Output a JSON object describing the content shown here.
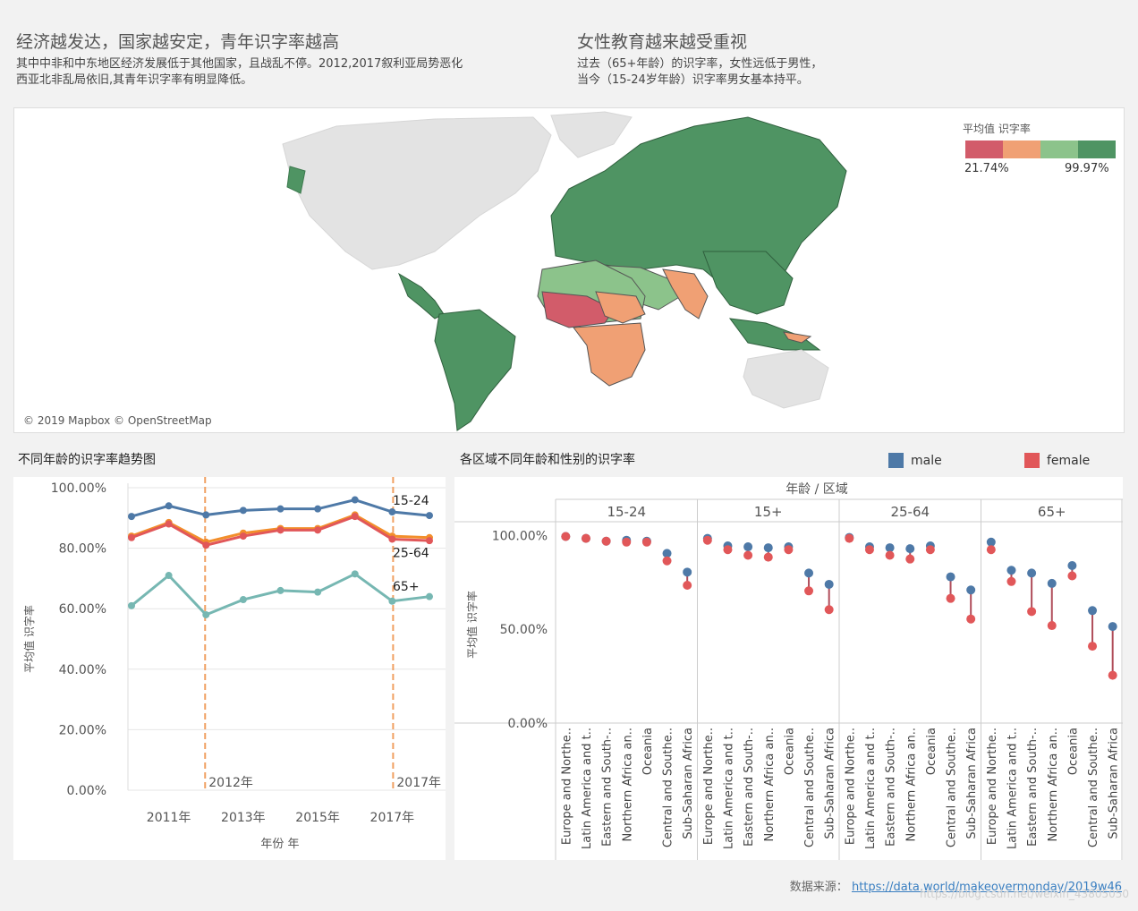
{
  "header_left": {
    "title": "经济越发达，国家越安定，青年识字率越高",
    "line1": "其中中非和中东地区经济发展低于其他国家，且战乱不停。2012,2017叙利亚局势恶化",
    "line2": "西亚北非乱局依旧,其青年识字率有明显降低。"
  },
  "header_right": {
    "title": "女性教育越来越受重视",
    "line1": "过去（65+年龄）的识字率，女性远低于男性，",
    "line2": "当今（15-24岁年龄）识字率男女基本持平。"
  },
  "map": {
    "credit": "© 2019 Mapbox © OpenStreetMap",
    "legend_title": "平均值 识字率",
    "legend_min": "21.74%",
    "legend_max": "99.97%",
    "legend_colors": [
      "#d25c6a",
      "#f0a074",
      "#8cc38b",
      "#4f9463"
    ]
  },
  "line_panel_title": "不同年龄的识字率趋势图",
  "dot_panel_title": "各区域不同年龄和性别的识字率",
  "legend_male": "male",
  "legend_female": "female",
  "colors": {
    "male": "#4e79a7",
    "female": "#e15759"
  },
  "source_label": "数据来源：",
  "source_url": "https://data.world/makeovermonday/2019w46",
  "watermark": "https://blog.csdn.net/weixin_43805050",
  "chart_data": [
    {
      "type": "line",
      "title": "不同年龄的识字率趋势图",
      "xlabel": "年份 年",
      "ylabel": "平均值 识字率",
      "x": [
        2010,
        2011,
        2012,
        2013,
        2014,
        2015,
        2016,
        2017,
        2018
      ],
      "x_ticks": [
        "2011年",
        "2013年",
        "2015年",
        "2017年"
      ],
      "x_tick_values": [
        2011,
        2013,
        2015,
        2017
      ],
      "ylim": [
        0,
        100
      ],
      "y_ticks": [
        "0.00%",
        "20.00%",
        "40.00%",
        "60.00%",
        "80.00%",
        "100.00%"
      ],
      "series": [
        {
          "name": "15-24",
          "color": "#4e79a7",
          "values": [
            90.5,
            94.0,
            91.0,
            92.5,
            93.0,
            93.0,
            96.0,
            92.0,
            90.8
          ]
        },
        {
          "name": "15+",
          "color": "#f28e2b",
          "values": [
            84.0,
            88.5,
            82.0,
            85.0,
            86.5,
            86.5,
            91.0,
            84.0,
            83.5
          ]
        },
        {
          "name": "25-64",
          "color": "#e15759",
          "values": [
            83.5,
            88.0,
            81.0,
            84.0,
            86.0,
            86.0,
            90.5,
            83.0,
            82.5
          ]
        },
        {
          "name": "65+",
          "color": "#76b7b2",
          "values": [
            61.0,
            71.0,
            58.0,
            63.0,
            66.0,
            65.5,
            71.5,
            62.5,
            64.0
          ]
        }
      ],
      "end_labels": [
        "15-24",
        "25-64",
        "65+"
      ],
      "annotations": [
        {
          "x": 2012,
          "label": "2012年"
        },
        {
          "x": 2017,
          "label": "2017年"
        }
      ]
    },
    {
      "type": "scatter",
      "title": "各区域不同年龄和性别的识字率",
      "header": "年龄 / 区域",
      "ylabel": "平均值 识字率",
      "ylim": [
        0,
        105
      ],
      "y_ticks": [
        "0.00%",
        "50.00%",
        "100.00%"
      ],
      "regions": [
        "Europe and Northe..",
        "Latin America and t..",
        "Eastern and South-..",
        "Northern Africa an..",
        "Oceania",
        "Central and Southe..",
        "Sub-Saharan Africa"
      ],
      "groups": [
        {
          "age": "15-24",
          "male": [
            99.5,
            98.5,
            97.0,
            97.5,
            97.0,
            90.5,
            80.5
          ],
          "female": [
            99.5,
            98.5,
            97.0,
            96.5,
            96.5,
            86.5,
            73.5
          ]
        },
        {
          "age": "15+",
          "male": [
            98.5,
            94.5,
            94.0,
            93.5,
            94.0,
            80.0,
            74.0
          ],
          "female": [
            97.5,
            92.5,
            89.5,
            88.5,
            92.5,
            70.5,
            60.5
          ]
        },
        {
          "age": "25-64",
          "male": [
            99.0,
            94.0,
            93.5,
            93.0,
            94.5,
            78.0,
            71.0
          ],
          "female": [
            98.5,
            92.5,
            89.5,
            87.5,
            92.5,
            66.5,
            55.5
          ]
        },
        {
          "age": "65+",
          "male": [
            96.5,
            81.5,
            80.0,
            74.5,
            84.0,
            60.0,
            51.5
          ],
          "female": [
            92.5,
            75.5,
            59.5,
            52.0,
            78.5,
            41.0,
            25.5
          ]
        }
      ]
    }
  ]
}
